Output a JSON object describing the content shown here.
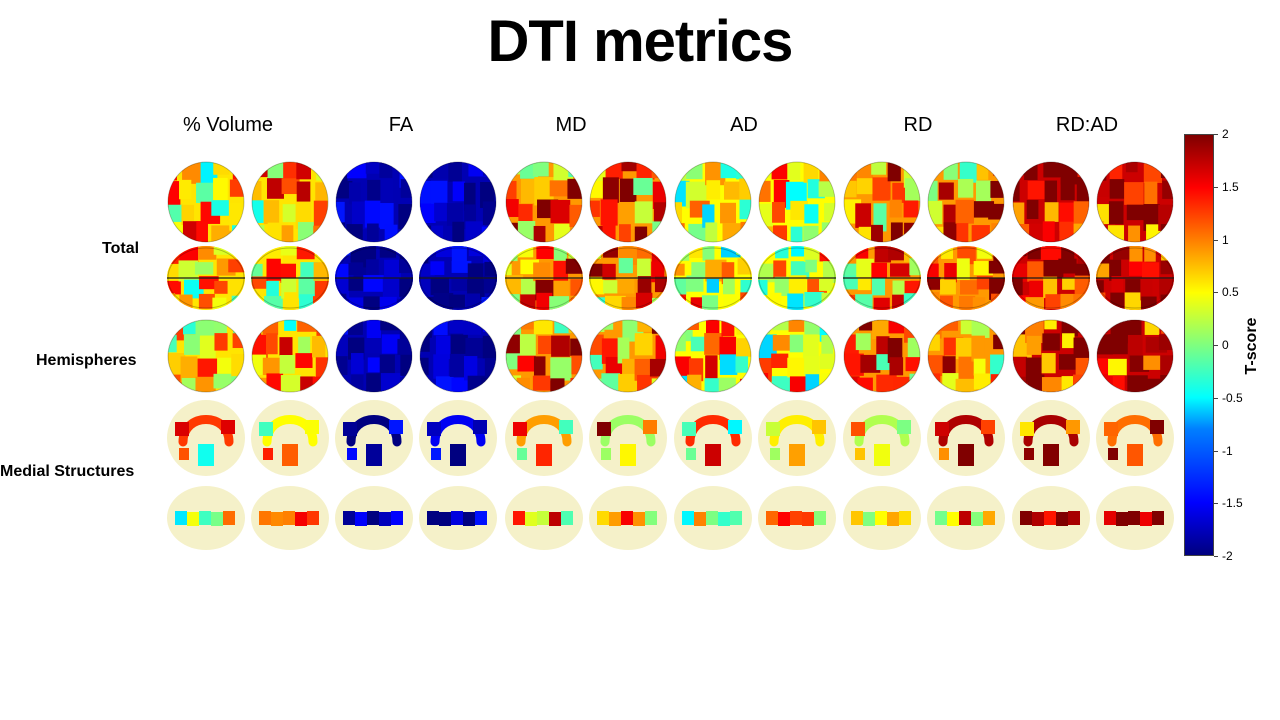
{
  "title": "DTI metrics",
  "columns": [
    "% Volume",
    "FA",
    "MD",
    "AD",
    "RD",
    "RD:AD"
  ],
  "rows": [
    {
      "label": "Total"
    },
    {
      "label": "Hemispheres"
    },
    {
      "label": "Medial Structures"
    }
  ],
  "colorbar": {
    "label": "T-score",
    "ticks": [
      "2",
      "1.5",
      "1",
      "0.5",
      "0",
      "-0.5",
      "-1",
      "-1.5",
      "-2"
    ],
    "min": -2,
    "max": 2
  },
  "panel_tone": [
    {
      "column": "% Volume",
      "t": 0.6
    },
    {
      "column": "FA",
      "t": -1.8
    },
    {
      "column": "MD",
      "t": 0.9
    },
    {
      "column": "AD",
      "t": 0.5
    },
    {
      "column": "RD",
      "t": 0.9
    },
    {
      "column": "RD:AD",
      "t": 1.7
    }
  ],
  "colors": {
    "background": "#ffffff",
    "medial_shell": "#f3efc0"
  }
}
